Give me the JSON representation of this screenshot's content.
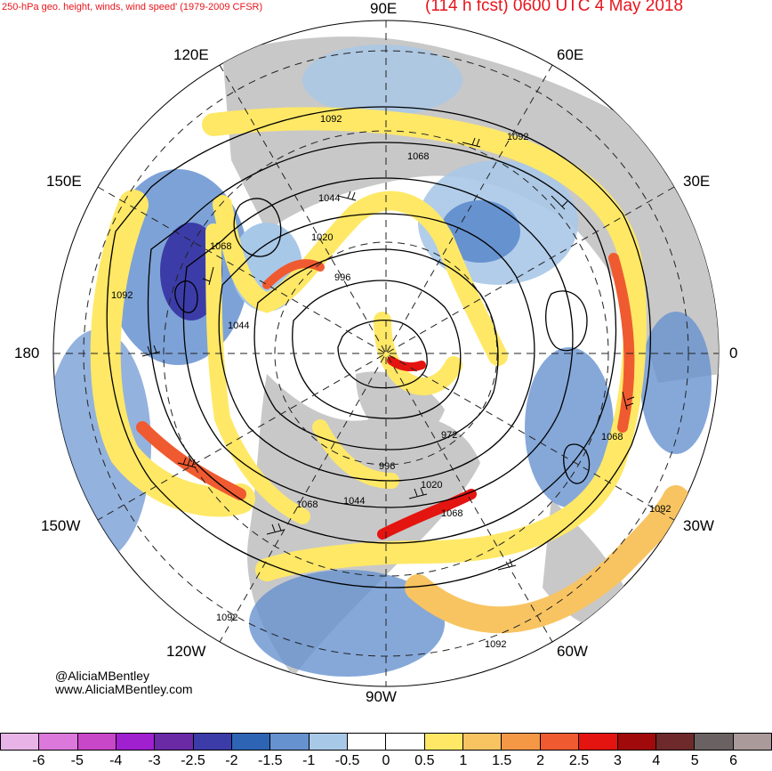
{
  "title": {
    "left": "250-hPa geo. height, winds, wind speed' (1979-2009 CFSR)",
    "right": "(114 h fcst) 0600 UTC 4 May 2018"
  },
  "longitude_labels": {
    "e90": "90E",
    "e60": "60E",
    "e30": "30E",
    "zero": "0",
    "w30": "30W",
    "w60": "60W",
    "w90": "90W",
    "w120": "120W",
    "w150": "150W",
    "lon180": "180",
    "e150": "150E",
    "e120": "120E"
  },
  "contour_labels": [
    "1092",
    "1092",
    "1068",
    "1044",
    "1020",
    "996",
    "1068",
    "1092",
    "1044",
    "972",
    "996",
    "1020",
    "1068",
    "1068",
    "1044",
    "1068",
    "1092",
    "1092",
    "1092"
  ],
  "credit": {
    "line1": "@AliciaMBentley",
    "line2": "www.AliciaMBentley.com"
  },
  "colorbar": {
    "colors": [
      "#e8b4e8",
      "#dc78dc",
      "#c846c8",
      "#a020d0",
      "#6a2aa6",
      "#3c3ca8",
      "#2e64b4",
      "#6692d0",
      "#a8c8e8",
      "#ffffff",
      "#ffffff",
      "#ffe866",
      "#f8c462",
      "#f49846",
      "#f05a30",
      "#e41410",
      "#a00a0a",
      "#6e2a2a",
      "#6a6262",
      "#aa9a9a"
    ],
    "ticks": [
      "-6",
      "-5",
      "-4",
      "-3",
      "-2.5",
      "-2",
      "-1.5",
      "-1",
      "-0.5",
      "0",
      "0.5",
      "1",
      "1.5",
      "2",
      "2.5",
      "3",
      "4",
      "5",
      "6"
    ]
  },
  "map_colors": {
    "land": "#c8c8c8",
    "jet_yellow": "#ffe866",
    "jet_orange": "#f49846",
    "jet_red": "#e41410",
    "anom_lightblue": "#a8c8e8",
    "anom_blue": "#6692d0",
    "anom_darkblue": "#3c3ca8"
  }
}
